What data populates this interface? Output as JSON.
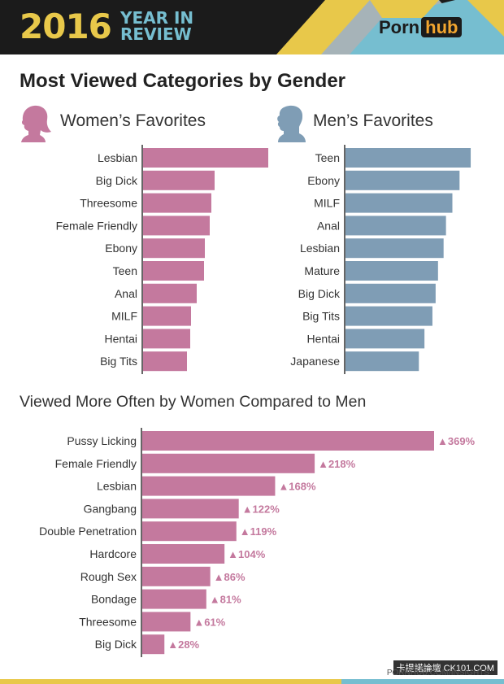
{
  "header": {
    "year": "2016",
    "year_in_review": [
      "YEAR IN",
      "REVIEW"
    ],
    "logo_text": "Porn",
    "logo_badge": "hub",
    "colors": {
      "background": "#1b1b1b",
      "yellow": "#e8c84a",
      "teal": "#76bed0",
      "gray": "#a6b3b8"
    }
  },
  "title": "Most Viewed Categories by Gender",
  "women_heading": "Women’s Favorites",
  "men_heading": "Men’s Favorites",
  "section2_title": "Viewed More Often by Women Compared to Men",
  "footer": "PORNHUB.COM/INSIGHTS",
  "watermark": "卡提諾論壇 CK101.COM",
  "colors": {
    "women": "#c4799e",
    "men": "#7f9db5",
    "axis": "#333333"
  },
  "chart_data": [
    {
      "type": "bar",
      "orientation": "horizontal",
      "title": "Women’s Favorites",
      "categories": [
        "Lesbian",
        "Big Dick",
        "Threesome",
        "Female Friendly",
        "Ebony",
        "Teen",
        "Anal",
        "MILF",
        "Hentai",
        "Big Tits"
      ],
      "values": [
        160,
        88,
        84,
        82,
        76,
        75,
        66,
        59,
        58,
        54
      ],
      "xlim": [
        0,
        160
      ]
    },
    {
      "type": "bar",
      "orientation": "horizontal",
      "title": "Men’s Favorites",
      "categories": [
        "Teen",
        "Ebony",
        "MILF",
        "Anal",
        "Lesbian",
        "Mature",
        "Big Dick",
        "Big Tits",
        "Hentai",
        "Japanese"
      ],
      "values": [
        157,
        143,
        134,
        126,
        123,
        116,
        113,
        109,
        99,
        92
      ],
      "xlim": [
        0,
        160
      ]
    },
    {
      "type": "bar",
      "orientation": "horizontal",
      "title": "Viewed More Often by Women Compared to Men",
      "categories": [
        "Pussy Licking",
        "Female Friendly",
        "Lesbian",
        "Gangbang",
        "Double Penetration",
        "Hardcore",
        "Rough Sex",
        "Bondage",
        "Threesome",
        "Big Dick"
      ],
      "values": [
        369,
        218,
        168,
        122,
        119,
        104,
        86,
        81,
        61,
        28
      ],
      "labels": [
        "▲369%",
        "▲218%",
        "▲168%",
        "▲122%",
        "▲119%",
        "▲104%",
        "▲86%",
        "▲81%",
        "▲61%",
        "▲28%"
      ],
      "xlim": [
        0,
        369
      ]
    }
  ]
}
